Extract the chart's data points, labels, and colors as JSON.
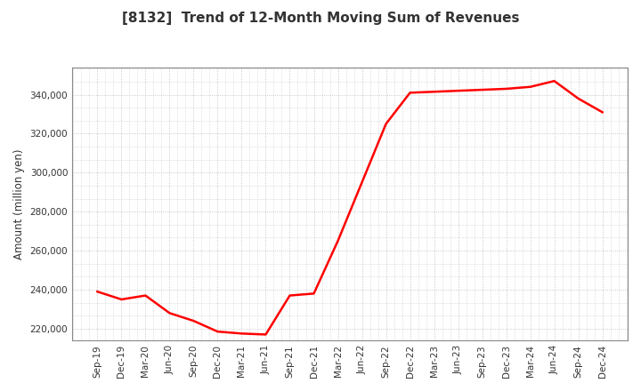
{
  "title": "[8132]  Trend of 12-Month Moving Sum of Revenues",
  "ylabel": "Amount (million yen)",
  "line_color": "#ff0000",
  "line_width": 1.8,
  "background_color": "#ffffff",
  "plot_bg_color": "#ffffff",
  "grid_color": "#bbbbbb",
  "title_color": "#333333",
  "tick_color": "#333333",
  "ylim": [
    214000,
    354000
  ],
  "yticks": [
    220000,
    240000,
    260000,
    280000,
    300000,
    320000,
    340000
  ],
  "x_labels": [
    "Sep-19",
    "Dec-19",
    "Mar-20",
    "Jun-20",
    "Sep-20",
    "Dec-20",
    "Mar-21",
    "Jun-21",
    "Sep-21",
    "Dec-21",
    "Mar-22",
    "Jun-22",
    "Sep-22",
    "Dec-22",
    "Mar-23",
    "Jun-23",
    "Sep-23",
    "Dec-23",
    "Mar-24",
    "Jun-24",
    "Sep-24",
    "Dec-24"
  ],
  "values": [
    239000,
    235000,
    237000,
    228000,
    224000,
    218500,
    217500,
    217000,
    237000,
    238000,
    265000,
    295000,
    325000,
    341000,
    341500,
    342000,
    342500,
    343000,
    344000,
    347000,
    338000,
    331000
  ],
  "title_fontsize": 11,
  "tick_fontsize": 7.5,
  "ylabel_fontsize": 8.5
}
